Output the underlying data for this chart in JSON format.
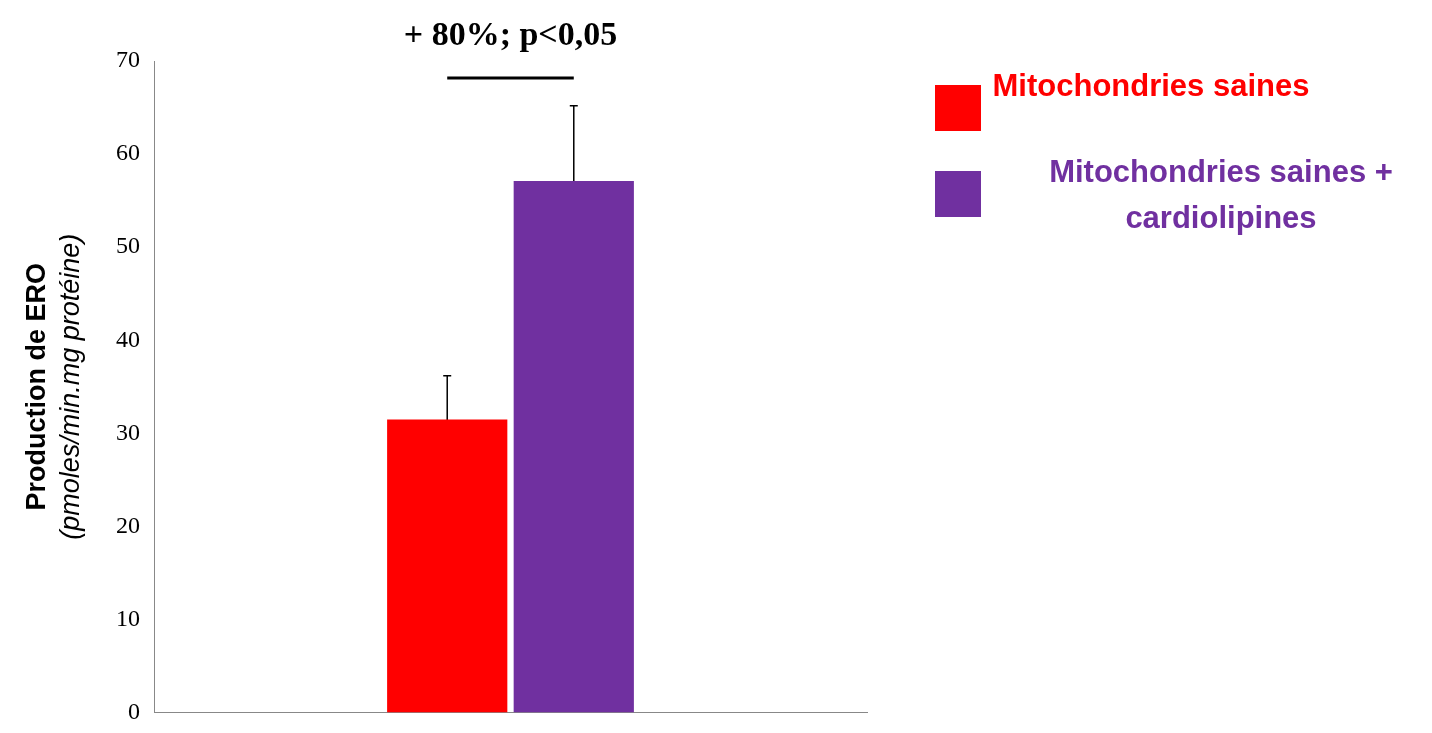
{
  "chart_data": {
    "type": "bar",
    "ylabel": "Production de ERO\n(pmoles/min.mg protéine)",
    "categories": [
      null
    ],
    "series": [
      {
        "name": "Mitochondries saines",
        "color": "#ff0000",
        "values": [
          31.5
        ],
        "errors": [
          4.7
        ]
      },
      {
        "name": "Mitochondries saines + cardiolipines",
        "color": "#7030a0",
        "values": [
          57.1
        ],
        "errors": [
          8.1
        ]
      }
    ],
    "ylim": [
      0,
      70
    ],
    "yticks": [
      0,
      10,
      20,
      30,
      40,
      50,
      60,
      70
    ],
    "grid": false,
    "legend": "right",
    "annotations": [
      "+ 80%; p<0,05"
    ]
  }
}
